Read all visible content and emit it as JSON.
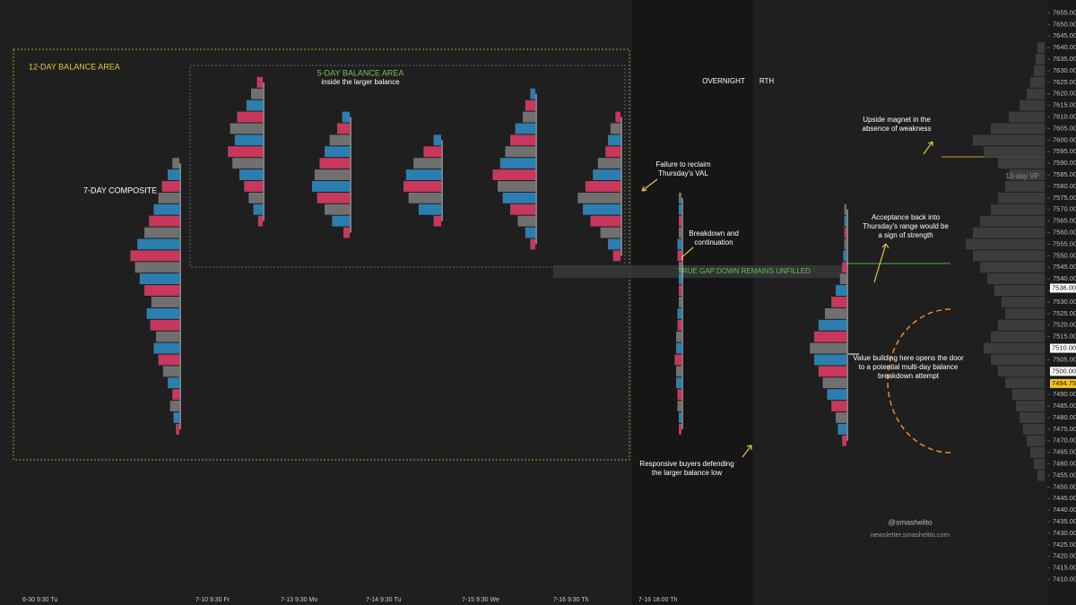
{
  "chart_data": {
    "type": "market-profile",
    "ylim": [
      7407.5,
      7657.5
    ],
    "yticks": [
      {
        "value": 7655,
        "label": "7655.00"
      },
      {
        "value": 7650,
        "label": "7650.00"
      },
      {
        "value": 7645,
        "label": "7645.00"
      },
      {
        "value": 7640,
        "label": "7640.00"
      },
      {
        "value": 7635,
        "label": "7635.00"
      },
      {
        "value": 7630,
        "label": "7630.00"
      },
      {
        "value": 7625,
        "label": "7625.00"
      },
      {
        "value": 7620,
        "label": "7620.00"
      },
      {
        "value": 7615,
        "label": "7615.00"
      },
      {
        "value": 7610,
        "label": "7610.00"
      },
      {
        "value": 7605,
        "label": "7605.00"
      },
      {
        "value": 7600,
        "label": "7600.00"
      },
      {
        "value": 7595,
        "label": "7595.00"
      },
      {
        "value": 7590,
        "label": "7590.00"
      },
      {
        "value": 7585,
        "label": "7585.00"
      },
      {
        "value": 7580,
        "label": "7580.00"
      },
      {
        "value": 7575,
        "label": "7575.00"
      },
      {
        "value": 7570,
        "label": "7570.00"
      },
      {
        "value": 7565,
        "label": "7565.00"
      },
      {
        "value": 7560,
        "label": "7560.00"
      },
      {
        "value": 7555,
        "label": "7555.00"
      },
      {
        "value": 7550,
        "label": "7550.00"
      },
      {
        "value": 7545,
        "label": "7545.00"
      },
      {
        "value": 7540,
        "label": "7540.00"
      },
      {
        "value": 7535,
        "label": "7535.00"
      },
      {
        "value": 7530,
        "label": "7530.00"
      },
      {
        "value": 7525,
        "label": "7525.00"
      },
      {
        "value": 7520,
        "label": "7520.00"
      },
      {
        "value": 7515,
        "label": "7515.00"
      },
      {
        "value": 7505,
        "label": "7505.00"
      },
      {
        "value": 7490,
        "label": "7490.00"
      },
      {
        "value": 7485,
        "label": "7485.00"
      },
      {
        "value": 7480,
        "label": "7480.00"
      },
      {
        "value": 7475,
        "label": "7475.00"
      },
      {
        "value": 7470,
        "label": "7470.00"
      },
      {
        "value": 7465,
        "label": "7465.00"
      },
      {
        "value": 7460,
        "label": "7460.00"
      },
      {
        "value": 7455,
        "label": "7455.00"
      },
      {
        "value": 7450,
        "label": "7450.00"
      },
      {
        "value": 7445,
        "label": "7445.00"
      },
      {
        "value": 7440,
        "label": "7440.00"
      },
      {
        "value": 7435,
        "label": "7435.00"
      },
      {
        "value": 7430,
        "label": "7430.00"
      },
      {
        "value": 7425,
        "label": "7425.00"
      },
      {
        "value": 7420,
        "label": "7420.00"
      },
      {
        "value": 7415,
        "label": "7415.00"
      },
      {
        "value": 7410,
        "label": "7410.00"
      }
    ],
    "price_tags": [
      {
        "value": 7536,
        "label": "7536.00",
        "color": "#ffffff"
      },
      {
        "value": 7510,
        "label": "7510.00",
        "color": "#ffffff"
      },
      {
        "value": 7500,
        "label": "7500.00",
        "color": "#ffffff"
      },
      {
        "value": 7494.75,
        "label": "7494.75",
        "color": "#f5c518"
      }
    ],
    "profiles": [
      {
        "label": "6-30  9:30 Tu",
        "low": 7475,
        "step": 5,
        "volume": [
          3,
          5,
          8,
          6,
          10,
          14,
          18,
          22,
          20,
          25,
          28,
          24,
          30,
          34,
          38,
          42,
          36,
          30,
          26,
          22,
          18,
          15,
          10,
          6
        ]
      },
      {
        "label": "7-10  9:30 Fr",
        "low": 7565,
        "step": 5,
        "volume": [
          4,
          8,
          12,
          16,
          20,
          26,
          30,
          24,
          28,
          22,
          14,
          10,
          5
        ]
      },
      {
        "label": "7-13  9:30 Mo",
        "low": 7560,
        "step": 5,
        "volume": [
          5,
          14,
          20,
          26,
          30,
          28,
          24,
          20,
          16,
          10,
          6
        ]
      },
      {
        "label": "7-14  9:30 Tu",
        "low": 7565,
        "step": 5,
        "volume": [
          6,
          18,
          26,
          30,
          28,
          22,
          14,
          6
        ]
      },
      {
        "label": "7-15  9:30 We",
        "low": 7555,
        "step": 5,
        "volume": [
          4,
          8,
          14,
          20,
          26,
          30,
          34,
          28,
          24,
          20,
          16,
          10,
          8,
          4
        ]
      },
      {
        "label": "7-16  9:30 Th",
        "low": 7550,
        "step": 5,
        "volume": [
          6,
          10,
          16,
          24,
          30,
          34,
          28,
          22,
          18,
          12,
          10,
          8,
          4
        ]
      },
      {
        "label": "7-16  18:00 Th",
        "low": 7475,
        "step": 5,
        "volume": [
          2,
          2,
          3,
          3,
          4,
          4,
          5,
          4,
          4,
          3,
          3,
          2,
          2,
          2,
          2,
          3,
          3,
          2,
          2,
          2,
          2
        ]
      },
      {
        "label": null,
        "low": 7470,
        "step": 5,
        "volume": [
          4,
          8,
          10,
          14,
          18,
          22,
          26,
          30,
          34,
          30,
          26,
          20,
          14,
          10,
          6,
          4,
          3,
          2,
          2,
          2,
          2
        ]
      },
      {
        "label": null,
        "low": 7455,
        "step": 5,
        "volume": [
          4,
          6,
          8,
          10,
          12,
          14,
          16,
          18,
          22,
          26,
          30,
          34,
          30,
          26,
          22,
          24,
          28,
          32,
          36,
          40,
          44,
          40,
          36,
          30,
          26,
          22,
          20,
          26,
          34,
          40,
          30,
          20,
          14,
          10,
          8,
          6,
          5,
          4
        ]
      }
    ],
    "annotations": [
      {
        "lines": [
          "12-DAY BALANCE AREA"
        ]
      },
      {
        "lines": [
          "5-DAY BALANCE AREA"
        ]
      },
      {
        "lines": [
          "inside the larger balance"
        ]
      },
      {
        "lines": [
          "7-DAY COMPOSITE"
        ]
      },
      {
        "lines": [
          "OVERNIGHT"
        ]
      },
      {
        "lines": [
          "RTH"
        ]
      },
      {
        "lines": [
          "Failure to reclaim",
          "Thursday's VAL"
        ]
      },
      {
        "lines": [
          "Breakdown and",
          "continuation"
        ]
      },
      {
        "lines": [
          "TRUE GAP DOWN REMAINS UNFILLED"
        ]
      },
      {
        "lines": [
          "Responsive buyers defending",
          "the larger balance low"
        ]
      },
      {
        "lines": [
          "Upside magnet in the",
          "absence of weakness"
        ]
      },
      {
        "lines": [
          "13-day VP"
        ]
      },
      {
        "lines": [
          "Acceptance back into",
          "Thursday's range would be",
          "a sign of strength"
        ]
      },
      {
        "lines": [
          "Value building here opens the door",
          "to a potential multi-day balance",
          "breakdown attempt"
        ]
      },
      {
        "lines": [
          "@smashelito"
        ]
      },
      {
        "lines": [
          "newsletter.smashelito.com"
        ]
      }
    ]
  }
}
